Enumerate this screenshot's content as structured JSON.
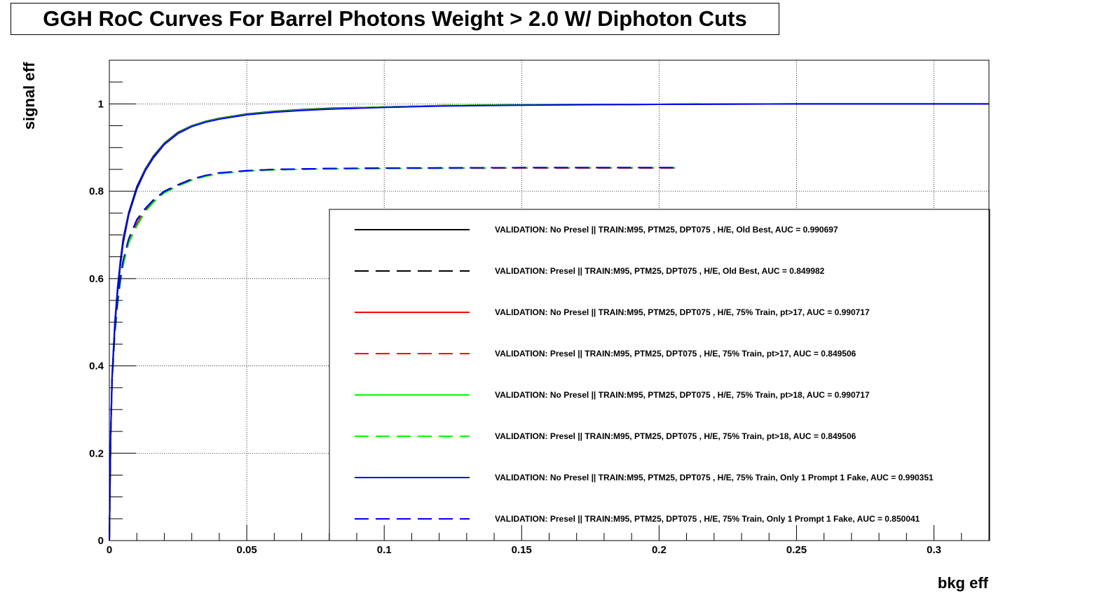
{
  "chart_data": {
    "type": "line",
    "title": "GGH RoC Curves For Barrel Photons Weight > 2.0 W/ Diphoton Cuts",
    "xlabel": "bkg eff",
    "ylabel": "signal eff",
    "xlim": [
      0,
      0.32
    ],
    "ylim": [
      0,
      1.1
    ],
    "x_ticks": [
      "0",
      "0.05",
      "0.1",
      "0.15",
      "0.2",
      "0.25",
      "0.3"
    ],
    "y_ticks": [
      "0",
      "0.2",
      "0.4",
      "0.6",
      "0.8",
      "1"
    ],
    "grid": true,
    "legend_position": "bottom-right",
    "series": [
      {
        "name": "VALIDATION: No Presel || TRAIN:M95, PTM25, DPT075 , H/E, Old Best, AUC = 0.990697",
        "color": "#000000",
        "dash": "solid",
        "x": [
          0,
          0.0005,
          0.001,
          0.002,
          0.003,
          0.004,
          0.005,
          0.007,
          0.01,
          0.013,
          0.016,
          0.02,
          0.025,
          0.03,
          0.035,
          0.04,
          0.05,
          0.06,
          0.07,
          0.08,
          0.1,
          0.12,
          0.15,
          0.2,
          0.25,
          0.3,
          0.32
        ],
        "y": [
          0,
          0.25,
          0.38,
          0.5,
          0.58,
          0.64,
          0.69,
          0.75,
          0.81,
          0.85,
          0.88,
          0.91,
          0.935,
          0.95,
          0.96,
          0.967,
          0.977,
          0.983,
          0.987,
          0.99,
          0.993,
          0.996,
          0.998,
          0.999,
          1.0,
          1.0,
          1.0
        ]
      },
      {
        "name": "VALIDATION: Presel || TRAIN:M95, PTM25, DPT075 , H/E, Old Best, AUC = 0.849982",
        "color": "#000000",
        "dash": "dashed",
        "x": [
          0,
          0.0005,
          0.001,
          0.002,
          0.003,
          0.004,
          0.005,
          0.007,
          0.01,
          0.013,
          0.016,
          0.02,
          0.025,
          0.03,
          0.035,
          0.04,
          0.05,
          0.06,
          0.08,
          0.1,
          0.15,
          0.207
        ],
        "y": [
          0,
          0.25,
          0.37,
          0.48,
          0.55,
          0.6,
          0.64,
          0.69,
          0.735,
          0.76,
          0.78,
          0.8,
          0.815,
          0.828,
          0.836,
          0.842,
          0.847,
          0.85,
          0.852,
          0.853,
          0.854,
          0.854
        ]
      },
      {
        "name": "VALIDATION: No Presel || TRAIN:M95, PTM25, DPT075 , H/E, 75% Train, pt>17, AUC = 0.990717",
        "color": "#ff0000",
        "dash": "solid",
        "x": [
          0,
          0.0005,
          0.001,
          0.002,
          0.003,
          0.004,
          0.005,
          0.007,
          0.01,
          0.013,
          0.016,
          0.02,
          0.025,
          0.03,
          0.035,
          0.04,
          0.05,
          0.06,
          0.07,
          0.08,
          0.1,
          0.12,
          0.15,
          0.2,
          0.215
        ],
        "y": [
          0,
          0.24,
          0.37,
          0.49,
          0.57,
          0.63,
          0.68,
          0.745,
          0.805,
          0.847,
          0.877,
          0.908,
          0.933,
          0.949,
          0.959,
          0.966,
          0.976,
          0.982,
          0.986,
          0.989,
          0.993,
          0.996,
          0.998,
          0.999,
          1.0
        ]
      },
      {
        "name": "VALIDATION: Presel || TRAIN:M95, PTM25, DPT075 , H/E, 75% Train, pt>17, AUC = 0.849506",
        "color": "#ff0000",
        "dash": "dashed",
        "x": [
          0,
          0.0005,
          0.001,
          0.002,
          0.003,
          0.004,
          0.005,
          0.007,
          0.01,
          0.013,
          0.016,
          0.02,
          0.025,
          0.03,
          0.035,
          0.04,
          0.05,
          0.06,
          0.08,
          0.1,
          0.15,
          0.207
        ],
        "y": [
          0,
          0.24,
          0.36,
          0.47,
          0.54,
          0.59,
          0.63,
          0.68,
          0.725,
          0.755,
          0.776,
          0.797,
          0.813,
          0.826,
          0.835,
          0.841,
          0.846,
          0.849,
          0.851,
          0.852,
          0.853,
          0.853
        ]
      },
      {
        "name": "VALIDATION: No Presel || TRAIN:M95, PTM25, DPT075 , H/E, 75% Train, pt>18, AUC = 0.990717",
        "color": "#00ff00",
        "dash": "solid",
        "x": [
          0,
          0.0005,
          0.001,
          0.002,
          0.003,
          0.004,
          0.005,
          0.007,
          0.01,
          0.013,
          0.016,
          0.02,
          0.025,
          0.03,
          0.035,
          0.04,
          0.05,
          0.06,
          0.07,
          0.08,
          0.1,
          0.12,
          0.15,
          0.2,
          0.215
        ],
        "y": [
          0,
          0.24,
          0.37,
          0.49,
          0.57,
          0.63,
          0.68,
          0.745,
          0.805,
          0.847,
          0.877,
          0.908,
          0.933,
          0.949,
          0.959,
          0.966,
          0.976,
          0.982,
          0.986,
          0.989,
          0.993,
          0.996,
          0.998,
          0.999,
          1.0
        ]
      },
      {
        "name": "VALIDATION: Presel || TRAIN:M95, PTM25, DPT075 , H/E, 75% Train, pt>18, AUC = 0.849506",
        "color": "#00ff00",
        "dash": "dashed",
        "x": [
          0,
          0.0005,
          0.001,
          0.002,
          0.003,
          0.004,
          0.005,
          0.007,
          0.01,
          0.013,
          0.016,
          0.02,
          0.025,
          0.03,
          0.035,
          0.04,
          0.05,
          0.06,
          0.08,
          0.1,
          0.15,
          0.207
        ],
        "y": [
          0,
          0.24,
          0.36,
          0.47,
          0.54,
          0.59,
          0.63,
          0.68,
          0.72,
          0.752,
          0.774,
          0.796,
          0.812,
          0.825,
          0.834,
          0.84,
          0.846,
          0.849,
          0.851,
          0.852,
          0.854,
          0.854
        ]
      },
      {
        "name": "VALIDATION: No Presel || TRAIN:M95, PTM25, DPT075 , H/E, 75% Train, Only 1 Prompt 1 Fake, AUC = 0.990351",
        "color": "#0000ff",
        "dash": "solid",
        "x": [
          0,
          0.0005,
          0.001,
          0.002,
          0.003,
          0.004,
          0.005,
          0.007,
          0.01,
          0.013,
          0.016,
          0.02,
          0.025,
          0.03,
          0.035,
          0.04,
          0.05,
          0.06,
          0.07,
          0.08,
          0.1,
          0.12,
          0.15,
          0.2,
          0.25,
          0.3,
          0.32
        ],
        "y": [
          0,
          0.24,
          0.37,
          0.49,
          0.57,
          0.63,
          0.68,
          0.745,
          0.805,
          0.846,
          0.876,
          0.907,
          0.932,
          0.948,
          0.958,
          0.965,
          0.975,
          0.981,
          0.985,
          0.988,
          0.992,
          0.995,
          0.997,
          0.999,
          1.0,
          1.0,
          1.0
        ]
      },
      {
        "name": "VALIDATION: Presel || TRAIN:M95, PTM25, DPT075 , H/E, 75% Train, Only 1 Prompt 1 Fake, AUC = 0.850041",
        "color": "#0000ff",
        "dash": "dashed",
        "x": [
          0,
          0.0005,
          0.001,
          0.002,
          0.003,
          0.004,
          0.005,
          0.007,
          0.01,
          0.013,
          0.016,
          0.02,
          0.025,
          0.03,
          0.035,
          0.04,
          0.05,
          0.06,
          0.08,
          0.1,
          0.15,
          0.207
        ],
        "y": [
          0,
          0.24,
          0.37,
          0.48,
          0.55,
          0.6,
          0.64,
          0.69,
          0.733,
          0.759,
          0.779,
          0.799,
          0.814,
          0.827,
          0.836,
          0.842,
          0.847,
          0.85,
          0.852,
          0.853,
          0.854,
          0.854
        ]
      }
    ]
  }
}
